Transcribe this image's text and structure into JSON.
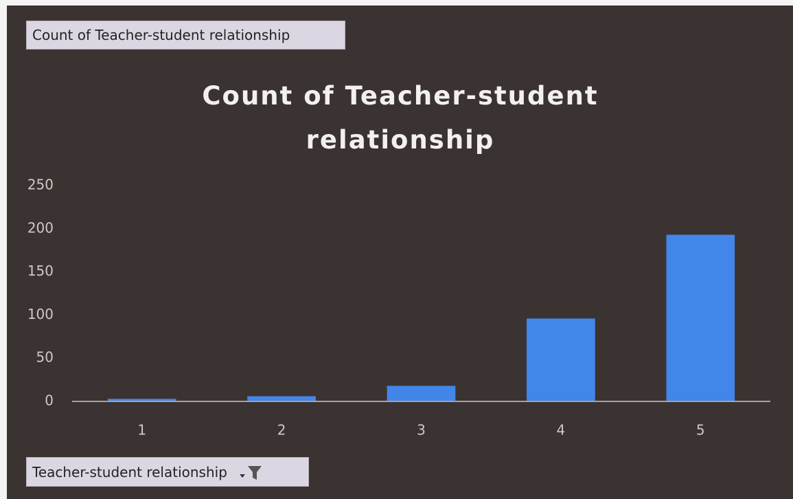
{
  "chart_data": {
    "type": "bar",
    "title": "Count of  Teacher-student relationship",
    "categories": [
      "1",
      "2",
      "3",
      "4",
      "5"
    ],
    "values": [
      3,
      6,
      18,
      96,
      193
    ],
    "color": "#4286ea",
    "ylim": [
      0,
      250
    ],
    "yticks": [
      0,
      50,
      100,
      150,
      200,
      250
    ],
    "grid": false,
    "value_field_button": "Count of Teacher-student relationship",
    "axis_field_button": "Teacher-student relationship"
  }
}
